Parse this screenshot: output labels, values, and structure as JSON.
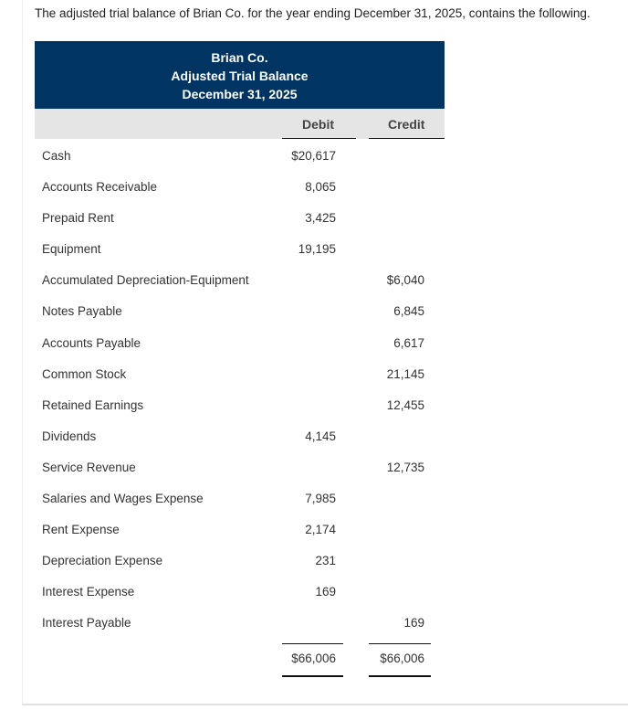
{
  "intro": "The adjusted trial balance of Brian Co. for the year ending December 31, 2025, contains the following.",
  "header": {
    "company": "Brian Co.",
    "title": "Adjusted Trial Balance",
    "date": "December 31, 2025"
  },
  "columns": {
    "debit": "Debit",
    "credit": "Credit"
  },
  "rows": [
    {
      "account": "Cash",
      "debit": "$20,617",
      "credit": ""
    },
    {
      "account": "Accounts Receivable",
      "debit": "8,065",
      "credit": ""
    },
    {
      "account": "Prepaid Rent",
      "debit": "3,425",
      "credit": ""
    },
    {
      "account": "Equipment",
      "debit": "19,195",
      "credit": ""
    },
    {
      "account": "Accumulated Depreciation-Equipment",
      "debit": "",
      "credit": "$6,040"
    },
    {
      "account": "Notes Payable",
      "debit": "",
      "credit": "6,845"
    },
    {
      "account": "Accounts Payable",
      "debit": "",
      "credit": "6,617"
    },
    {
      "account": "Common Stock",
      "debit": "",
      "credit": "21,145"
    },
    {
      "account": "Retained Earnings",
      "debit": "",
      "credit": "12,455"
    },
    {
      "account": "Dividends",
      "debit": "4,145",
      "credit": ""
    },
    {
      "account": "Service Revenue",
      "debit": "",
      "credit": "12,735"
    },
    {
      "account": "Salaries and Wages Expense",
      "debit": "7,985",
      "credit": ""
    },
    {
      "account": "Rent Expense",
      "debit": "2,174",
      "credit": ""
    },
    {
      "account": "Depreciation Expense",
      "debit": "231",
      "credit": ""
    },
    {
      "account": "Interest Expense",
      "debit": "169",
      "credit": ""
    },
    {
      "account": "Interest Payable",
      "debit": "",
      "credit": "169"
    }
  ],
  "totals": {
    "debit": "$66,006",
    "credit": "$66,006"
  },
  "colors": {
    "header_bg": "#003462",
    "colhdr_bg": "#e5e5e5"
  }
}
